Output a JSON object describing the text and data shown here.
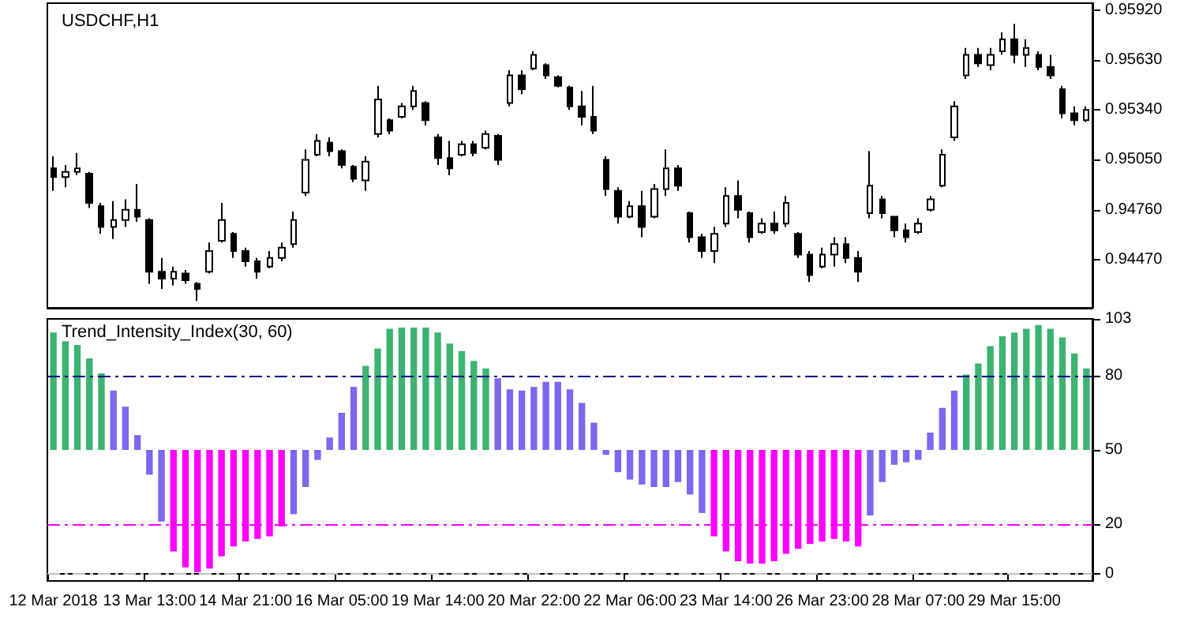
{
  "chart_data": [
    {
      "type": "candlestick",
      "title": "USDCHF,H1",
      "color": "#000000",
      "tick_labels": "y",
      "categories": [
        null,
        null,
        null,
        null,
        null,
        null,
        null,
        null,
        null,
        null,
        null,
        null,
        null,
        null,
        null,
        null,
        null,
        null,
        null,
        null,
        null,
        null,
        null,
        null,
        null,
        null,
        null,
        null,
        null,
        null,
        null,
        null,
        null,
        null,
        null,
        null,
        null,
        null,
        null,
        null,
        null,
        null,
        null,
        null,
        null,
        null,
        null,
        null,
        null,
        null,
        null,
        null,
        null,
        null,
        null,
        null,
        null,
        null,
        null,
        null,
        null,
        null,
        null,
        null,
        null,
        null,
        null,
        null,
        null,
        null,
        null,
        null,
        null,
        null,
        null,
        null,
        null,
        null,
        null,
        null,
        null,
        null,
        null,
        null,
        null,
        null,
        null
      ],
      "ylim": [
        0.9419,
        0.9596
      ],
      "yticks": [
        {
          "value": 0.9447,
          "label": "0.94470"
        },
        {
          "value": 0.9476,
          "label": "0.94760"
        },
        {
          "value": 0.9505,
          "label": "0.95050"
        },
        {
          "value": 0.9534,
          "label": "0.95340"
        },
        {
          "value": 0.9563,
          "label": "0.95630"
        },
        {
          "value": 0.9592,
          "label": "0.95920"
        }
      ],
      "ohlc": [
        [
          0.95,
          0.9507,
          0.9487,
          0.9495
        ],
        [
          0.9495,
          0.9502,
          0.9489,
          0.9498
        ],
        [
          0.9498,
          0.9509,
          0.9496,
          0.95
        ],
        [
          0.9497,
          0.9498,
          0.9477,
          0.948
        ],
        [
          0.9478,
          0.948,
          0.9462,
          0.9466
        ],
        [
          0.9466,
          0.9481,
          0.9459,
          0.947
        ],
        [
          0.947,
          0.9482,
          0.9466,
          0.9476
        ],
        [
          0.9476,
          0.9491,
          0.9469,
          0.9472
        ],
        [
          0.947,
          0.9471,
          0.9433,
          0.944
        ],
        [
          0.944,
          0.9448,
          0.943,
          0.9436
        ],
        [
          0.9436,
          0.9443,
          0.9432,
          0.944
        ],
        [
          0.9439,
          0.9441,
          0.9433,
          0.9435
        ],
        [
          0.9433,
          0.9434,
          0.9423,
          0.943
        ],
        [
          0.944,
          0.9457,
          0.9439,
          0.9452
        ],
        [
          0.9458,
          0.948,
          0.9457,
          0.947
        ],
        [
          0.9462,
          0.9463,
          0.9448,
          0.9452
        ],
        [
          0.9452,
          0.9454,
          0.9443,
          0.9446
        ],
        [
          0.9446,
          0.9448,
          0.9436,
          0.944
        ],
        [
          0.9443,
          0.9452,
          0.9442,
          0.9448
        ],
        [
          0.9448,
          0.9457,
          0.9446,
          0.9454
        ],
        [
          0.9456,
          0.9475,
          0.9454,
          0.947
        ],
        [
          0.9486,
          0.9511,
          0.9484,
          0.9505
        ],
        [
          0.9508,
          0.952,
          0.9507,
          0.9516
        ],
        [
          0.9515,
          0.9518,
          0.9507,
          0.951
        ],
        [
          0.951,
          0.9511,
          0.95,
          0.9502
        ],
        [
          0.9501,
          0.9502,
          0.9492,
          0.9494
        ],
        [
          0.9493,
          0.9507,
          0.9487,
          0.9504
        ],
        [
          0.952,
          0.9548,
          0.9518,
          0.954
        ],
        [
          0.9528,
          0.9529,
          0.952,
          0.9522
        ],
        [
          0.953,
          0.9538,
          0.9529,
          0.9536
        ],
        [
          0.9536,
          0.9548,
          0.9534,
          0.9545
        ],
        [
          0.9538,
          0.9539,
          0.9525,
          0.9528
        ],
        [
          0.9518,
          0.952,
          0.9502,
          0.9506
        ],
        [
          0.9506,
          0.9516,
          0.9496,
          0.95
        ],
        [
          0.9508,
          0.9516,
          0.9507,
          0.9514
        ],
        [
          0.9514,
          0.9516,
          0.9507,
          0.9509
        ],
        [
          0.9512,
          0.9522,
          0.9511,
          0.952
        ],
        [
          0.9519,
          0.952,
          0.9502,
          0.9505
        ],
        [
          0.9538,
          0.9557,
          0.9536,
          0.9554
        ],
        [
          0.9554,
          0.9557,
          0.9543,
          0.9546
        ],
        [
          0.9558,
          0.9568,
          0.9557,
          0.9566
        ],
        [
          0.956,
          0.9561,
          0.9552,
          0.9554
        ],
        [
          0.9553,
          0.9554,
          0.9547,
          0.9548
        ],
        [
          0.9547,
          0.9548,
          0.9534,
          0.9536
        ],
        [
          0.9536,
          0.9545,
          0.9525,
          0.953
        ],
        [
          0.953,
          0.9548,
          0.952,
          0.9522
        ],
        [
          0.9505,
          0.9507,
          0.9484,
          0.9488
        ],
        [
          0.9487,
          0.9489,
          0.9468,
          0.9472
        ],
        [
          0.9472,
          0.9481,
          0.9471,
          0.9478
        ],
        [
          0.9478,
          0.9487,
          0.946,
          0.9466
        ],
        [
          0.9472,
          0.9491,
          0.9471,
          0.9488
        ],
        [
          0.9488,
          0.9511,
          0.9484,
          0.95
        ],
        [
          0.95,
          0.9502,
          0.9487,
          0.949
        ],
        [
          0.9474,
          0.9475,
          0.9457,
          0.946
        ],
        [
          0.946,
          0.9462,
          0.9448,
          0.9452
        ],
        [
          0.9452,
          0.9466,
          0.9445,
          0.9462
        ],
        [
          0.9468,
          0.9489,
          0.9466,
          0.9484
        ],
        [
          0.9484,
          0.9493,
          0.9471,
          0.9476
        ],
        [
          0.9474,
          0.9475,
          0.9457,
          0.946
        ],
        [
          0.9463,
          0.9471,
          0.9462,
          0.9468
        ],
        [
          0.9468,
          0.9475,
          0.9462,
          0.9464
        ],
        [
          0.9468,
          0.9484,
          0.9466,
          0.948
        ],
        [
          0.9462,
          0.9463,
          0.9448,
          0.945
        ],
        [
          0.945,
          0.9452,
          0.9434,
          0.9438
        ],
        [
          0.9443,
          0.9454,
          0.9442,
          0.945
        ],
        [
          0.945,
          0.946,
          0.9443,
          0.9456
        ],
        [
          0.9456,
          0.946,
          0.9445,
          0.9448
        ],
        [
          0.9448,
          0.9452,
          0.9434,
          0.944
        ],
        [
          0.9474,
          0.951,
          0.9471,
          0.949
        ],
        [
          0.9482,
          0.9484,
          0.9471,
          0.9474
        ],
        [
          0.9472,
          0.9472,
          0.946,
          0.9464
        ],
        [
          0.9464,
          0.9468,
          0.9457,
          0.946
        ],
        [
          0.9463,
          0.9471,
          0.9462,
          0.9468
        ],
        [
          0.9476,
          0.9484,
          0.9475,
          0.9482
        ],
        [
          0.949,
          0.9511,
          0.9489,
          0.9508
        ],
        [
          0.9518,
          0.9539,
          0.9516,
          0.9536
        ],
        [
          0.9554,
          0.957,
          0.9552,
          0.9566
        ],
        [
          0.9566,
          0.957,
          0.9559,
          0.9561
        ],
        [
          0.956,
          0.957,
          0.9557,
          0.9566
        ],
        [
          0.9568,
          0.9579,
          0.9566,
          0.9575
        ],
        [
          0.9575,
          0.9584,
          0.9561,
          0.9566
        ],
        [
          0.9566,
          0.9575,
          0.9559,
          0.957
        ],
        [
          0.9566,
          0.9568,
          0.9557,
          0.9559
        ],
        [
          0.9559,
          0.9566,
          0.9552,
          0.9554
        ],
        [
          0.9546,
          0.9548,
          0.9529,
          0.9532
        ],
        [
          0.9532,
          0.9536,
          0.9525,
          0.9528
        ],
        [
          0.9528,
          0.9536,
          0.9527,
          0.9534
        ]
      ]
    },
    {
      "type": "bar",
      "title": "Trend_Intensity_Index(30, 60)",
      "categories": [
        "12 Mar 2018",
        null,
        null,
        null,
        null,
        null,
        null,
        null,
        "13 Mar 13:00",
        null,
        null,
        null,
        null,
        null,
        null,
        null,
        "14 Mar 21:00",
        null,
        null,
        null,
        null,
        null,
        null,
        null,
        "16 Mar 05:00",
        null,
        null,
        null,
        null,
        null,
        null,
        null,
        "19 Mar 14:00",
        null,
        null,
        null,
        null,
        null,
        null,
        null,
        "20 Mar 22:00",
        null,
        null,
        null,
        null,
        null,
        null,
        null,
        "22 Mar 06:00",
        null,
        null,
        null,
        null,
        null,
        null,
        null,
        "23 Mar 14:00",
        null,
        null,
        null,
        null,
        null,
        null,
        null,
        "26 Mar 23:00",
        null,
        null,
        null,
        null,
        null,
        null,
        null,
        "28 Mar 07:00",
        null,
        null,
        null,
        null,
        null,
        null,
        null,
        "29 Mar 15:00",
        null,
        null,
        null,
        null,
        null,
        null
      ],
      "ylim": [
        -3,
        103
      ],
      "yticks": [
        {
          "value": 0,
          "label": "0"
        },
        20,
        50,
        80,
        103
      ],
      "base": [
        50,
        50,
        50,
        50,
        50,
        50,
        50,
        50,
        50,
        50,
        50,
        50,
        50,
        50,
        50,
        50,
        50,
        50,
        50,
        50,
        50,
        50,
        50,
        50,
        50,
        50,
        50,
        50,
        50,
        50,
        50,
        50,
        50,
        50,
        50,
        50,
        50,
        50,
        50,
        50,
        50,
        50,
        50,
        50,
        50,
        50,
        50,
        50,
        50,
        50,
        50,
        50,
        50,
        50,
        50,
        50,
        50,
        50,
        50,
        50,
        50,
        50,
        50,
        50,
        50,
        50,
        50,
        50,
        50,
        50,
        50,
        50,
        50,
        50,
        50,
        50,
        50,
        50,
        50,
        50,
        50,
        50,
        50,
        50,
        50,
        50,
        50
      ],
      "values": [
        47.5,
        44,
        42.5,
        37,
        31,
        24,
        17.5,
        6,
        -10,
        -29,
        -41,
        -47.5,
        -49.5,
        -48,
        -43,
        -39,
        -37,
        -36,
        -35,
        -31,
        -26,
        -15,
        -4,
        5,
        15,
        25.5,
        34,
        41,
        49,
        49.5,
        49.5,
        49.5,
        47.5,
        43,
        40,
        36,
        33,
        29,
        24.5,
        24,
        25.5,
        27.5,
        27.5,
        24.5,
        19,
        11,
        -2,
        -9,
        -12,
        -14,
        -15,
        -15,
        -13,
        -18,
        -25.5,
        -35,
        -41,
        -45,
        -46,
        -46,
        -45,
        -42,
        -40,
        -38,
        -37,
        -36,
        -37,
        -39,
        -26.5,
        -13,
        -6,
        -5,
        -4,
        7,
        17,
        24,
        30.5,
        35,
        42,
        46,
        47.5,
        49,
        50.5,
        49,
        45.5,
        39,
        33
      ],
      "colors": [
        "#3cb371",
        "#3cb371",
        "#3cb371",
        "#3cb371",
        "#3cb371",
        "#7b68ee",
        "#7b68ee",
        "#7b68ee",
        "#7b68ee",
        "#7b68ee",
        "#ff00ff",
        "#ff00ff",
        "#ff00ff",
        "#ff00ff",
        "#ff00ff",
        "#ff00ff",
        "#ff00ff",
        "#ff00ff",
        "#ff00ff",
        "#ff00ff",
        "#7b68ee",
        "#7b68ee",
        "#7b68ee",
        "#7b68ee",
        "#7b68ee",
        "#7b68ee",
        "#3cb371",
        "#3cb371",
        "#3cb371",
        "#3cb371",
        "#3cb371",
        "#3cb371",
        "#3cb371",
        "#3cb371",
        "#3cb371",
        "#3cb371",
        "#3cb371",
        "#7b68ee",
        "#7b68ee",
        "#7b68ee",
        "#7b68ee",
        "#7b68ee",
        "#7b68ee",
        "#7b68ee",
        "#7b68ee",
        "#7b68ee",
        "#7b68ee",
        "#7b68ee",
        "#7b68ee",
        "#7b68ee",
        "#7b68ee",
        "#7b68ee",
        "#7b68ee",
        "#7b68ee",
        "#7b68ee",
        "#ff00ff",
        "#ff00ff",
        "#ff00ff",
        "#ff00ff",
        "#ff00ff",
        "#ff00ff",
        "#ff00ff",
        "#ff00ff",
        "#ff00ff",
        "#ff00ff",
        "#ff00ff",
        "#ff00ff",
        "#ff00ff",
        "#7b68ee",
        "#7b68ee",
        "#7b68ee",
        "#7b68ee",
        "#7b68ee",
        "#7b68ee",
        "#7b68ee",
        "#7b68ee",
        "#3cb371",
        "#3cb371",
        "#3cb371",
        "#3cb371",
        "#3cb371",
        "#3cb371",
        "#3cb371",
        "#3cb371",
        "#3cb371",
        "#3cb371",
        "#3cb371"
      ],
      "ref_lines": [
        {
          "axis": "y",
          "value": 80,
          "color": "#00008b",
          "line_style": "dashed"
        },
        {
          "axis": "y",
          "value": 20,
          "color": "#ff00ff",
          "line_style": "dashed"
        },
        {
          "axis": "y",
          "value": 0,
          "color": "#c0c0c0",
          "line_style": "dashed"
        }
      ]
    }
  ]
}
